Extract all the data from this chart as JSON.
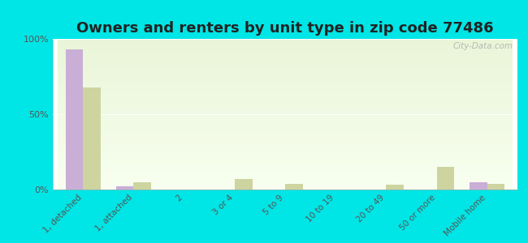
{
  "title": "Owners and renters by unit type in zip code 77486",
  "categories": [
    "1, detached",
    "1, attached",
    "2",
    "3 or 4",
    "5 to 9",
    "10 to 19",
    "20 to 49",
    "50 or more",
    "Mobile home"
  ],
  "owner_values": [
    93,
    2,
    0,
    0,
    0,
    0,
    0,
    0,
    5
  ],
  "renter_values": [
    68,
    5,
    0,
    7,
    4,
    0,
    3,
    15,
    4
  ],
  "owner_color": "#c9aed6",
  "renter_color": "#cdd4a0",
  "background_color": "#00e5e5",
  "plot_bg_top": "#eaf5d8",
  "plot_bg_bottom": "#f8fff0",
  "ylim": [
    0,
    100
  ],
  "yticks": [
    0,
    50,
    100
  ],
  "ytick_labels": [
    "0%",
    "50%",
    "100%"
  ],
  "watermark": "City-Data.com",
  "title_fontsize": 13,
  "bar_width": 0.35
}
